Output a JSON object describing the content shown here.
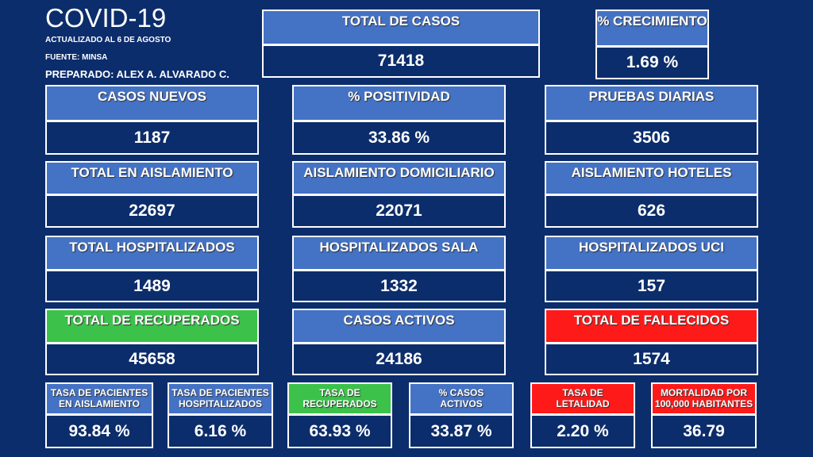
{
  "header": {
    "title": "COVID-19",
    "updated": "ACTUALIZADO  AL 6 DE AGOSTO",
    "source": "FUENTE: MINSA",
    "prepared": "PREPARADO:  ALEX A. ALVARADO  C."
  },
  "cards": [
    {
      "label": [
        "TOTAL DE CASOS"
      ],
      "value": "71418",
      "color": "#4472c4"
    },
    {
      "label": [
        "% CRECIMIENTO"
      ],
      "value": "1.69 %",
      "color": "#4472c4"
    },
    {
      "label": [
        "CASOS NUEVOS"
      ],
      "value": "1187",
      "color": "#4472c4"
    },
    {
      "label": [
        "% POSITIVIDAD"
      ],
      "value": "33.86 %",
      "color": "#4472c4"
    },
    {
      "label": [
        "PRUEBAS DIARIAS"
      ],
      "value": "3506",
      "color": "#4472c4"
    },
    {
      "label": [
        "TOTAL EN AISLAMIENTO"
      ],
      "value": "22697",
      "color": "#4472c4"
    },
    {
      "label": [
        "AISLAMIENTO DOMICILIARIO"
      ],
      "value": "22071",
      "color": "#4472c4"
    },
    {
      "label": [
        "AISLAMIENTO HOTELES"
      ],
      "value": "626",
      "color": "#4472c4"
    },
    {
      "label": [
        "TOTAL HOSPITALIZADOS"
      ],
      "value": "1489",
      "color": "#4472c4"
    },
    {
      "label": [
        "HOSPITALIZADOS SALA"
      ],
      "value": "1332",
      "color": "#4472c4"
    },
    {
      "label": [
        "HOSPITALIZADOS UCI"
      ],
      "value": "157",
      "color": "#4472c4"
    },
    {
      "label": [
        "TOTAL DE RECUPERADOS"
      ],
      "value": "45658",
      "color": "#3cc24a"
    },
    {
      "label": [
        "CASOS ACTIVOS"
      ],
      "value": "24186",
      "color": "#4472c4"
    },
    {
      "label": [
        "TOTAL DE FALLECIDOS"
      ],
      "value": "1574",
      "color": "#ff1a1a"
    },
    {
      "label": [
        "TASA DE PACIENTES",
        "EN AISLAMIENTO"
      ],
      "value": "93.84 %",
      "color": "#4472c4"
    },
    {
      "label": [
        "TASA DE PACIENTES",
        "HOSPITALIZADOS"
      ],
      "value": "6.16 %",
      "color": "#4472c4"
    },
    {
      "label": [
        "TASA DE",
        "RECUPERADOS"
      ],
      "value": "63.93 %",
      "color": "#3cc24a"
    },
    {
      "label": [
        "% CASOS",
        "ACTIVOS"
      ],
      "value": "33.87 %",
      "color": "#4472c4"
    },
    {
      "label": [
        "TASA DE",
        "LETALIDAD"
      ],
      "value": "2.20 %",
      "color": "#ff1a1a"
    },
    {
      "label": [
        "MORTALIDAD POR",
        "100,000 HABITANTES"
      ],
      "value": "36.79",
      "color": "#ff1a1a"
    }
  ]
}
